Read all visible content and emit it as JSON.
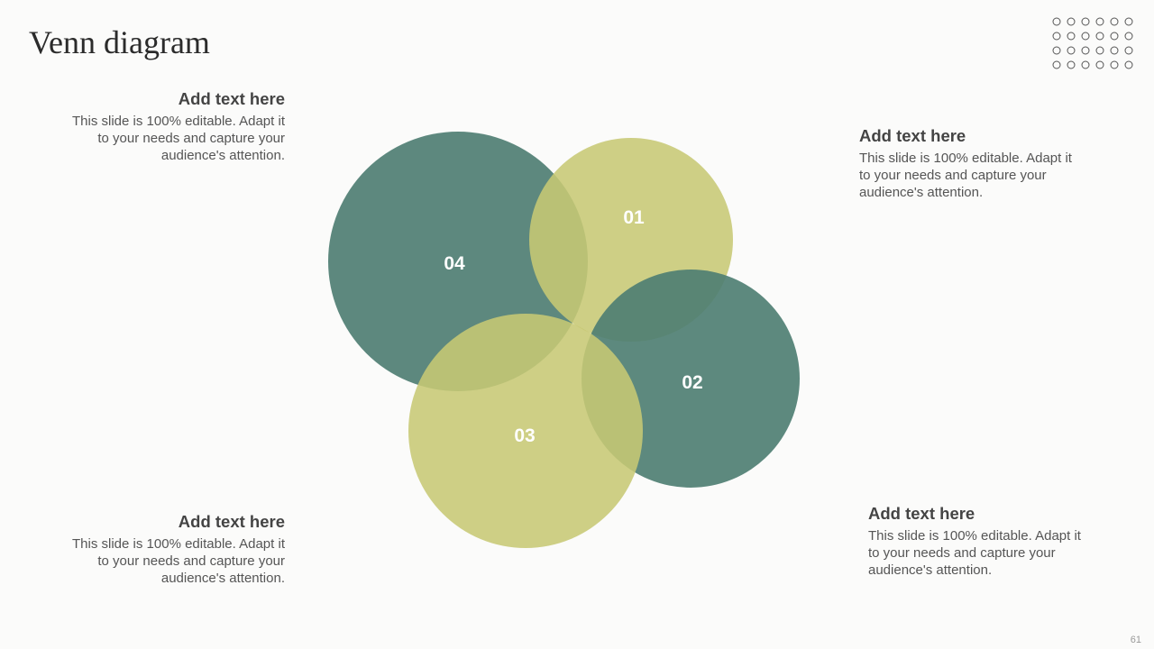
{
  "title": "Venn diagram",
  "colors": {
    "teal": "#58847a",
    "olive": "#cbcc7e"
  },
  "circles": [
    {
      "label": "01",
      "color": "olive"
    },
    {
      "label": "02",
      "color": "teal"
    },
    {
      "label": "03",
      "color": "olive"
    },
    {
      "label": "04",
      "color": "teal"
    }
  ],
  "blocks": [
    {
      "heading": "Add text here",
      "body": "This slide is 100% editable. Adapt it to your needs and capture your audience's attention."
    },
    {
      "heading": "Add text here",
      "body": "This slide is 100% editable. Adapt it to your needs and capture your audience's attention."
    },
    {
      "heading": "Add text here",
      "body": "This slide is 100% editable. Adapt it to your needs and capture your audience's attention."
    },
    {
      "heading": "Add text here",
      "body": "This slide is 100% editable. Adapt it to your needs and capture your audience's attention."
    }
  ],
  "decor": {
    "dot_grid": "circle-grid-6x4"
  },
  "page_number": "61"
}
